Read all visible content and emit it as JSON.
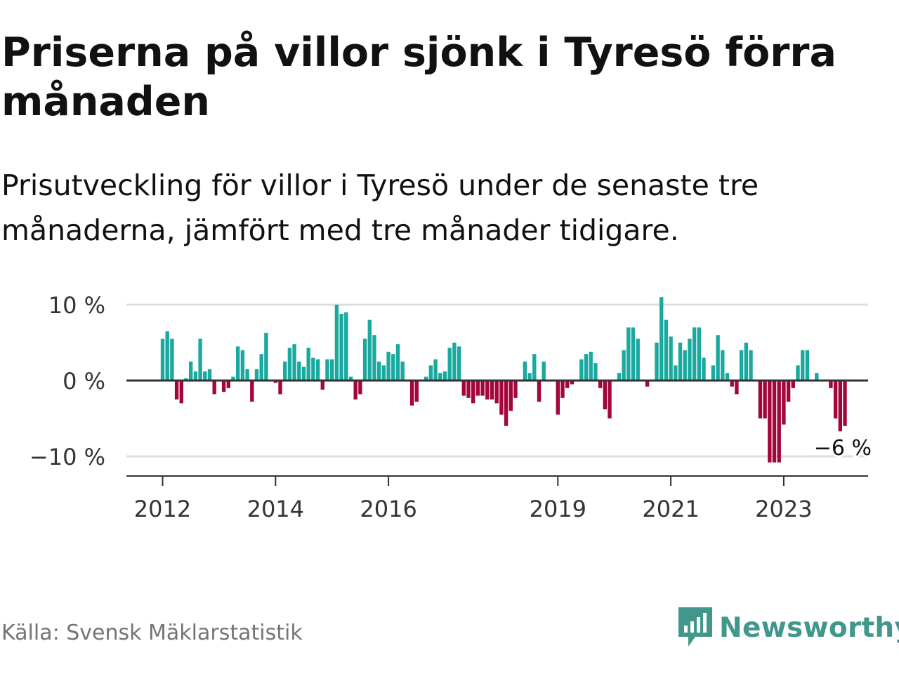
{
  "title": "Priserna på villor sjönk i Tyresö förra månaden",
  "subtitle": "Prisutveckling för villor i Tyresö under de senaste tre månaderna, jämfört med tre månader tidigare.",
  "source": "Källa: Svensk Mäklarstatistik",
  "brand": {
    "name": "Newsworthy",
    "icon": "newsworthy-logo-icon"
  },
  "colors": {
    "positive": "#1aa99f",
    "negative": "#a3063b",
    "grid": "#dddddd",
    "axis": "#333333",
    "brand": "#41978b"
  },
  "chart_data": {
    "type": "bar",
    "title": "Priserna på villor sjönk i Tyresö förra månaden",
    "xlabel": "",
    "ylabel": "",
    "y_unit": "%",
    "ylim": [
      -12.5,
      12
    ],
    "y_ticks": [
      {
        "value": 10,
        "label": "10 %"
      },
      {
        "value": 0,
        "label": "0 %"
      },
      {
        "value": -10,
        "label": "−10 %"
      }
    ],
    "x_start": {
      "year": 2012,
      "month": 1
    },
    "x_ticks": [
      {
        "year": 2012,
        "label": "2012"
      },
      {
        "year": 2014,
        "label": "2014"
      },
      {
        "year": 2016,
        "label": "2016"
      },
      {
        "year": 2019,
        "label": "2019"
      },
      {
        "year": 2021,
        "label": "2021"
      },
      {
        "year": 2023,
        "label": "2023"
      }
    ],
    "values": [
      5.5,
      6.5,
      5.5,
      -2.5,
      -3.0,
      0.3,
      2.5,
      1.2,
      5.5,
      1.2,
      1.5,
      -1.8,
      0.0,
      -1.5,
      -1.0,
      0.5,
      4.5,
      4.0,
      1.5,
      -2.8,
      1.5,
      3.5,
      6.3,
      0.0,
      -0.3,
      -1.8,
      2.5,
      4.3,
      4.8,
      2.5,
      1.8,
      4.3,
      3.0,
      2.8,
      -1.2,
      2.8,
      2.8,
      10.0,
      8.8,
      9.0,
      0.5,
      -2.5,
      -1.8,
      5.5,
      8.0,
      6.0,
      2.5,
      2.0,
      3.8,
      3.5,
      4.8,
      2.5,
      0.0,
      -3.3,
      -2.8,
      0.0,
      0.5,
      2.0,
      2.8,
      1.0,
      1.2,
      4.3,
      5.0,
      4.5,
      -2.0,
      -2.3,
      -3.0,
      -2.0,
      -2.0,
      -2.5,
      -2.5,
      -3.0,
      -4.5,
      -6.0,
      -4.0,
      -2.3,
      0.0,
      2.5,
      1.0,
      3.5,
      -2.8,
      2.5,
      0.0,
      0.0,
      -4.5,
      -2.3,
      -1.0,
      -0.5,
      0.0,
      2.8,
      3.5,
      3.8,
      2.3,
      -1.0,
      -3.8,
      -5.0,
      0.0,
      1.0,
      4.0,
      7.0,
      7.0,
      5.5,
      0.0,
      -0.8,
      0.0,
      5.0,
      11.0,
      8.0,
      5.8,
      2.0,
      5.0,
      4.0,
      5.5,
      7.0,
      7.0,
      3.0,
      0.0,
      2.0,
      6.0,
      4.0,
      1.0,
      -0.8,
      -1.8,
      4.0,
      5.0,
      4.0,
      0.0,
      -5.0,
      -5.0,
      -10.8,
      -10.8,
      -10.8,
      -5.8,
      -2.8,
      -1.0,
      2.0,
      4.0,
      4.0,
      0.0,
      1.0,
      0.0,
      0.0,
      -1.0,
      -5.0,
      -6.7,
      -6.0
    ],
    "last_value_label": "−6 %"
  }
}
